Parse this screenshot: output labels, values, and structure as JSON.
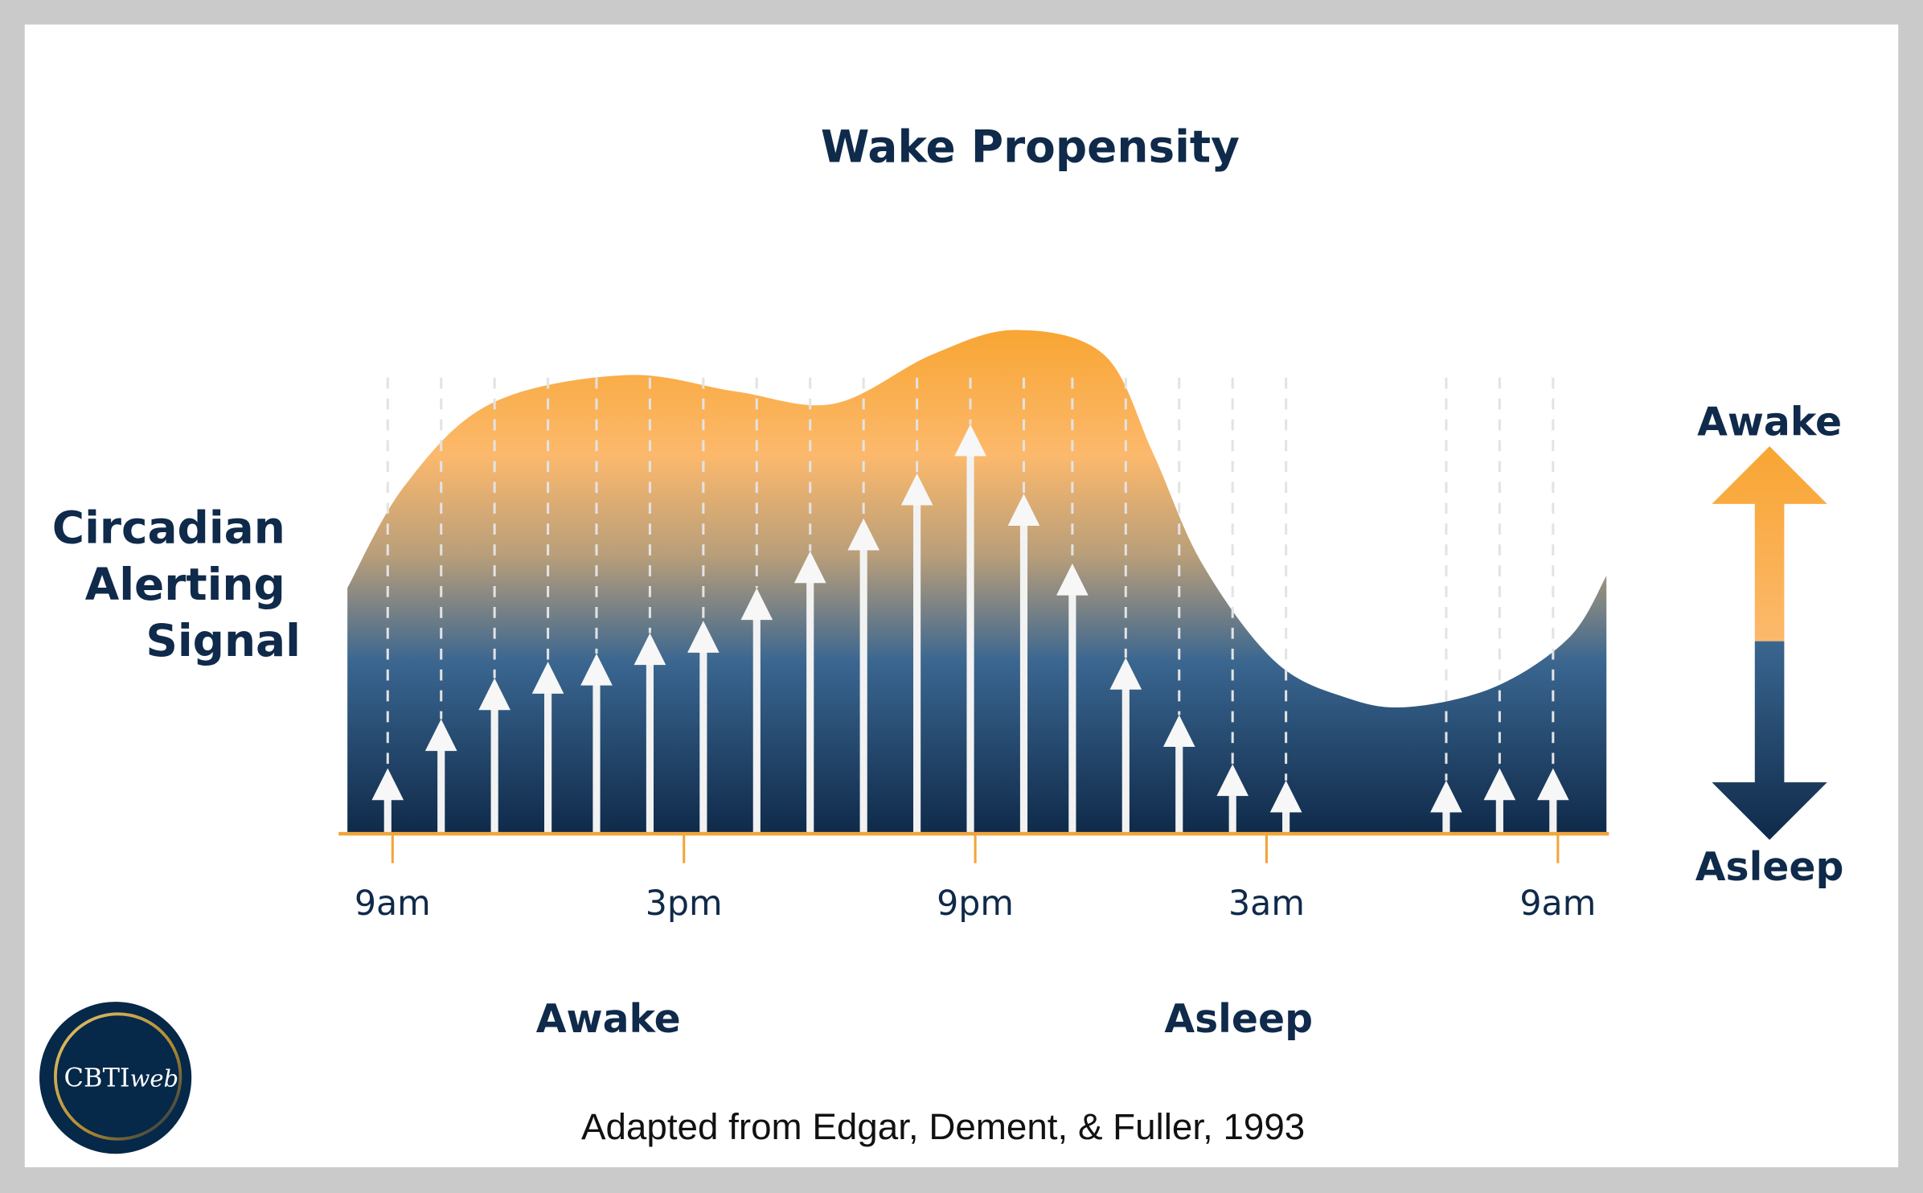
{
  "chart_data": {
    "type": "area",
    "title": "Wake Propensity",
    "ylabel": "Circadian Alerting Signal",
    "x_ticks": [
      {
        "label": "9am",
        "hour": 9
      },
      {
        "label": "3pm",
        "hour": 15
      },
      {
        "label": "9pm",
        "hour": 21
      },
      {
        "label": "3am",
        "hour": 27
      },
      {
        "label": "9am",
        "hour": 33
      }
    ],
    "regions": [
      "Awake",
      "Asleep"
    ],
    "scale_arrow": {
      "top": "Awake",
      "bottom": "Asleep"
    },
    "arrows": [
      {
        "hour": 8.9,
        "level": 0.16
      },
      {
        "hour": 10.0,
        "level": 0.28
      },
      {
        "hour": 11.1,
        "level": 0.38
      },
      {
        "hour": 12.2,
        "level": 0.42
      },
      {
        "hour": 13.2,
        "level": 0.44
      },
      {
        "hour": 14.3,
        "level": 0.49
      },
      {
        "hour": 15.4,
        "level": 0.52
      },
      {
        "hour": 16.5,
        "level": 0.6
      },
      {
        "hour": 17.6,
        "level": 0.69
      },
      {
        "hour": 18.7,
        "level": 0.77
      },
      {
        "hour": 19.8,
        "level": 0.88
      },
      {
        "hour": 20.9,
        "level": 1.0
      },
      {
        "hour": 22.0,
        "level": 0.83
      },
      {
        "hour": 23.0,
        "level": 0.66
      },
      {
        "hour": 24.1,
        "level": 0.43
      },
      {
        "hour": 25.2,
        "level": 0.29
      },
      {
        "hour": 26.3,
        "level": 0.17
      },
      {
        "hour": 27.4,
        "level": 0.13
      },
      {
        "hour": 30.7,
        "level": 0.13
      },
      {
        "hour": 31.8,
        "level": 0.16
      },
      {
        "hour": 32.9,
        "level": 0.16
      }
    ],
    "curve": [
      [
        8.07,
        0.6
      ],
      [
        9.25,
        0.85
      ],
      [
        11.02,
        1.05
      ],
      [
        13.8,
        1.12
      ],
      [
        16.07,
        1.08
      ],
      [
        18.09,
        1.05
      ],
      [
        20.11,
        1.17
      ],
      [
        21.83,
        1.23
      ],
      [
        23.65,
        1.17
      ],
      [
        24.66,
        0.93
      ],
      [
        25.67,
        0.66
      ],
      [
        27.18,
        0.42
      ],
      [
        28.7,
        0.33
      ],
      [
        29.96,
        0.31
      ],
      [
        31.73,
        0.36
      ],
      [
        33.24,
        0.48
      ],
      [
        34.0,
        0.63
      ]
    ],
    "colors": {
      "orange": "#f8a532",
      "light_orange": "#fcb96c",
      "blue": "#3a6690",
      "navy": "#0f2a4a",
      "axis": "#f2a53a"
    }
  },
  "caption": "Adapted from Edgar, Dement, & Fuller, 1993",
  "logo": {
    "text_main": "CBTI",
    "text_italic": "web"
  }
}
